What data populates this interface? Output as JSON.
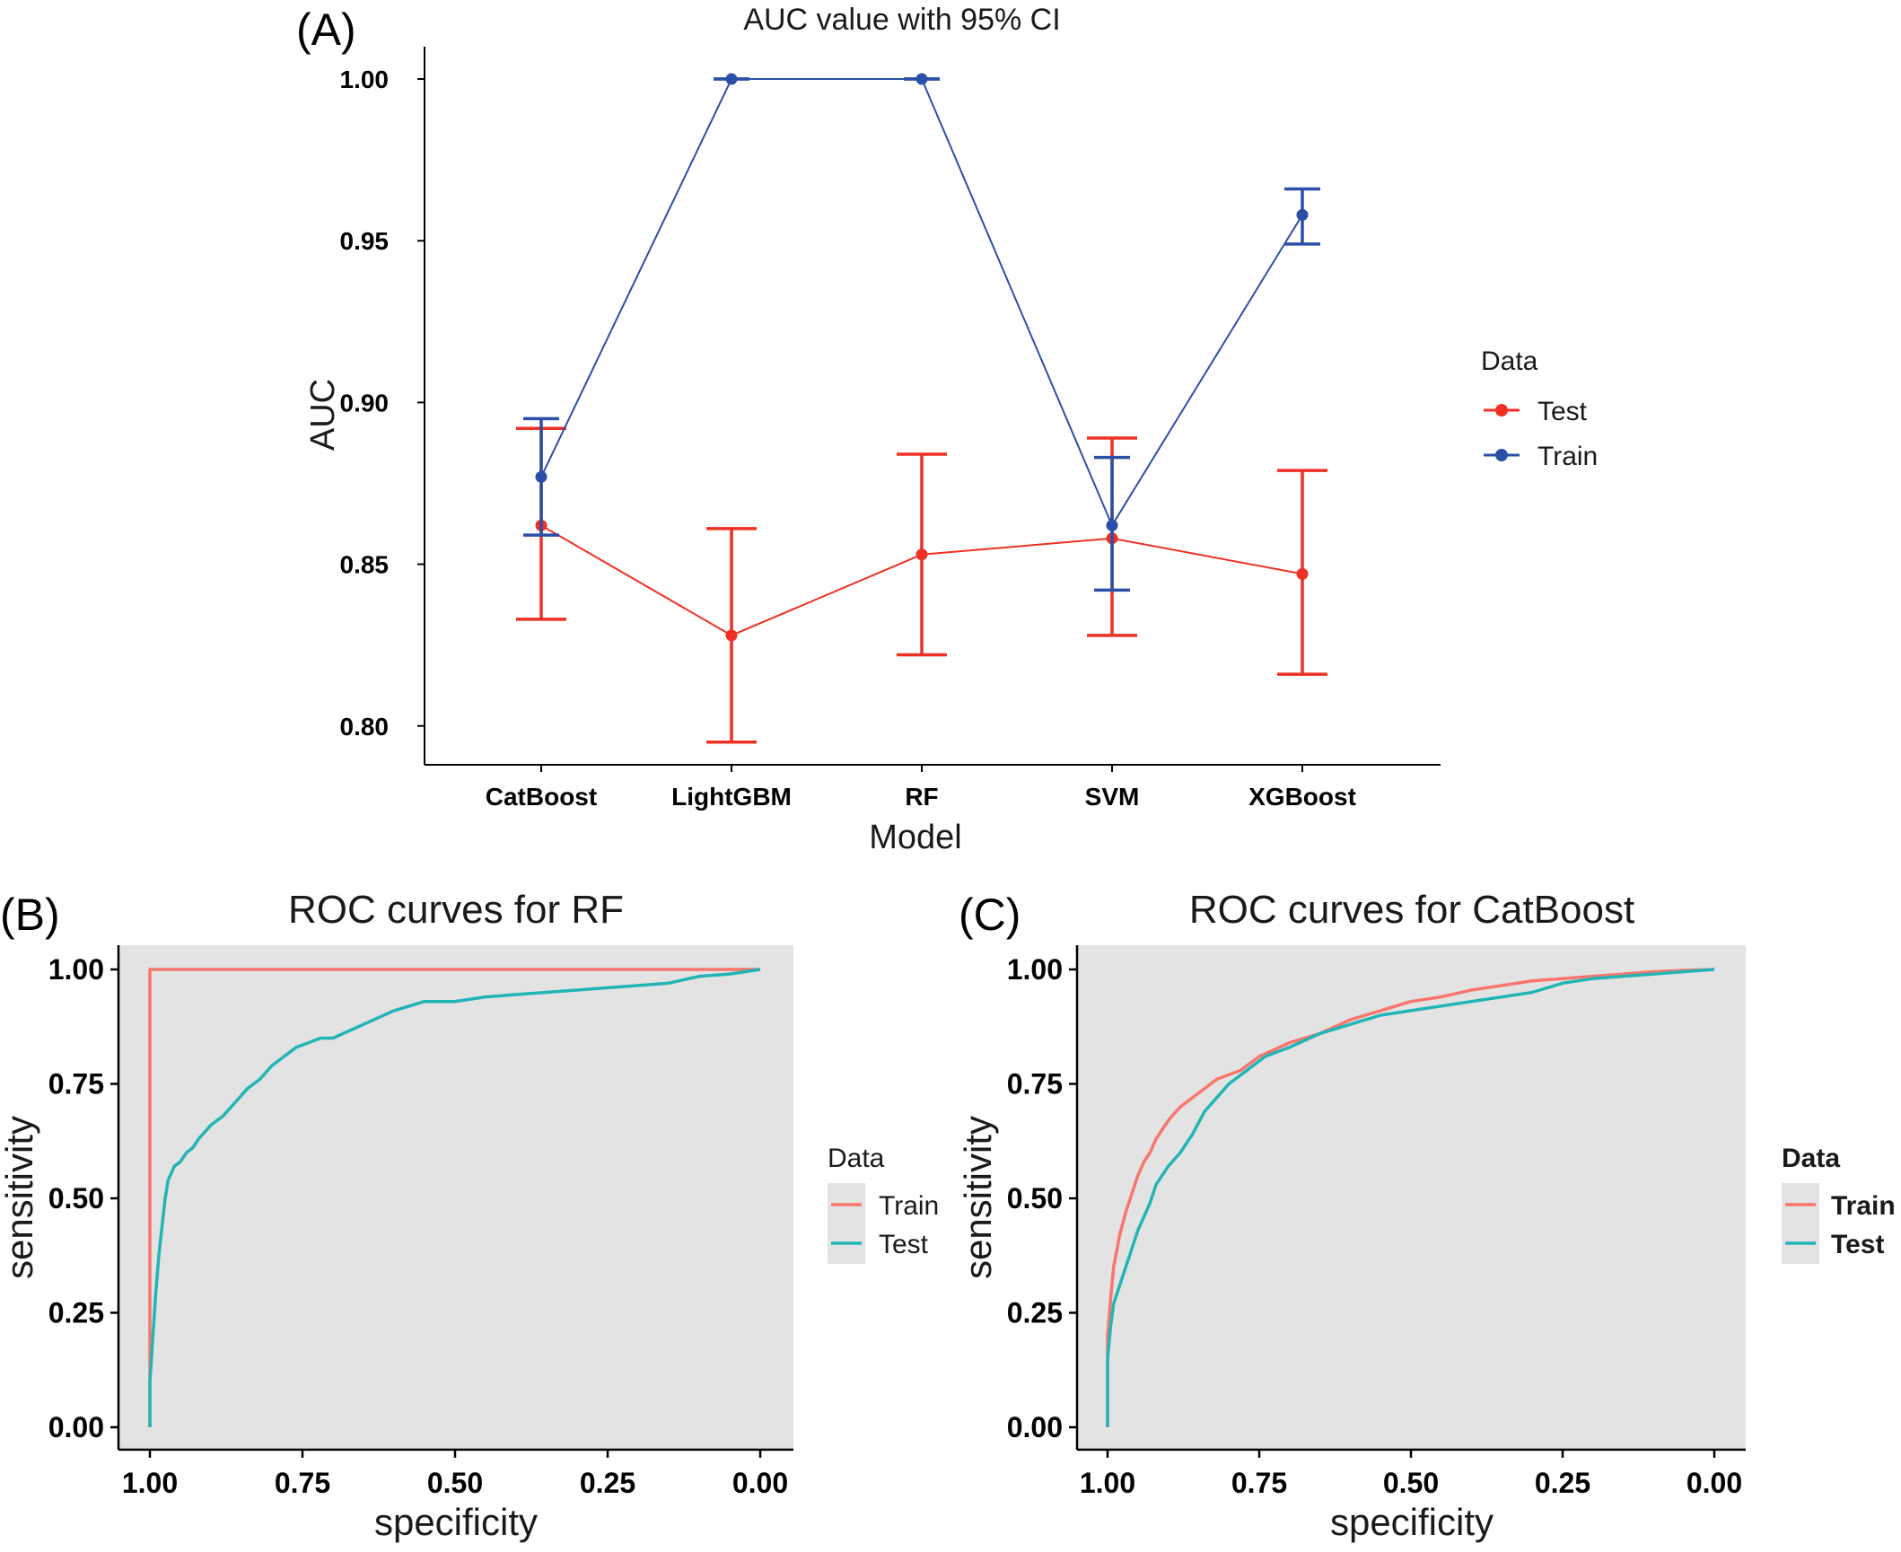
{
  "colors": {
    "a_test": "#ee3124",
    "a_train": "#2b4fa8",
    "roc_train": "#f8766d",
    "roc_test": "#22b5b5",
    "panel_bg": "#e3e3e3"
  },
  "chart_data": [
    {
      "panel": "(A)",
      "type": "line",
      "title": "AUC value with 95% CI",
      "xlabel": "Model",
      "ylabel": "AUC",
      "categories": [
        "CatBoost",
        "LightGBM",
        "RF",
        "SVM",
        "XGBoost"
      ],
      "ylim": [
        0.788,
        1.01
      ],
      "yticks": [
        "0.80",
        "0.85",
        "0.90",
        "0.95",
        "1.00"
      ],
      "legend": {
        "title": "Data",
        "position": "right"
      },
      "series": [
        {
          "name": "Test",
          "values": [
            0.862,
            0.828,
            0.853,
            0.858,
            0.847
          ],
          "lower": [
            0.833,
            0.795,
            0.822,
            0.828,
            0.816
          ],
          "upper": [
            0.892,
            0.861,
            0.884,
            0.889,
            0.879
          ]
        },
        {
          "name": "Train",
          "values": [
            0.877,
            1.0,
            1.0,
            0.862,
            0.958
          ],
          "lower": [
            0.859,
            1.0,
            1.0,
            0.842,
            0.949
          ],
          "upper": [
            0.895,
            1.0,
            1.0,
            0.883,
            0.966
          ]
        }
      ]
    },
    {
      "panel": "(B)",
      "type": "line",
      "title": "ROC curves for RF",
      "xlabel": "specificity",
      "ylabel": "sensitivity",
      "xlim": [
        1.0,
        0.0
      ],
      "ylim": [
        0.0,
        1.0
      ],
      "ticks": [
        "0.00",
        "0.25",
        "0.50",
        "0.75",
        "1.00"
      ],
      "legend": {
        "title": "Data",
        "position": "right"
      },
      "series": [
        {
          "name": "Train",
          "x": [
            1.0,
            1.0,
            0.0
          ],
          "y": [
            0.0,
            1.0,
            1.0
          ]
        },
        {
          "name": "Test",
          "x": [
            1.0,
            1.0,
            0.995,
            0.99,
            0.985,
            0.98,
            0.975,
            0.97,
            0.96,
            0.95,
            0.94,
            0.93,
            0.92,
            0.9,
            0.88,
            0.86,
            0.84,
            0.82,
            0.8,
            0.78,
            0.76,
            0.74,
            0.72,
            0.7,
            0.65,
            0.6,
            0.55,
            0.5,
            0.45,
            0.4,
            0.35,
            0.3,
            0.25,
            0.2,
            0.15,
            0.1,
            0.05,
            0.0
          ],
          "y": [
            0.0,
            0.1,
            0.2,
            0.3,
            0.38,
            0.44,
            0.5,
            0.54,
            0.57,
            0.58,
            0.6,
            0.61,
            0.63,
            0.66,
            0.68,
            0.71,
            0.74,
            0.76,
            0.79,
            0.81,
            0.83,
            0.84,
            0.85,
            0.85,
            0.88,
            0.91,
            0.93,
            0.93,
            0.94,
            0.945,
            0.95,
            0.955,
            0.96,
            0.965,
            0.97,
            0.985,
            0.99,
            1.0
          ]
        }
      ]
    },
    {
      "panel": "(C)",
      "type": "line",
      "title": "ROC curves for CatBoost",
      "xlabel": "specificity",
      "ylabel": "sensitivity",
      "xlim": [
        1.0,
        0.0
      ],
      "ylim": [
        0.0,
        1.0
      ],
      "ticks": [
        "0.00",
        "0.25",
        "0.50",
        "0.75",
        "1.00"
      ],
      "legend": {
        "title": "Data",
        "position": "right"
      },
      "series": [
        {
          "name": "Train",
          "x": [
            1.0,
            1.0,
            0.995,
            0.99,
            0.98,
            0.97,
            0.96,
            0.95,
            0.94,
            0.93,
            0.92,
            0.9,
            0.88,
            0.86,
            0.84,
            0.82,
            0.8,
            0.78,
            0.75,
            0.7,
            0.65,
            0.6,
            0.55,
            0.5,
            0.45,
            0.4,
            0.35,
            0.3,
            0.25,
            0.2,
            0.15,
            0.1,
            0.05,
            0.0
          ],
          "y": [
            0.0,
            0.2,
            0.28,
            0.35,
            0.42,
            0.47,
            0.51,
            0.55,
            0.58,
            0.6,
            0.63,
            0.67,
            0.7,
            0.72,
            0.74,
            0.76,
            0.77,
            0.78,
            0.81,
            0.84,
            0.86,
            0.89,
            0.91,
            0.93,
            0.94,
            0.955,
            0.965,
            0.975,
            0.98,
            0.985,
            0.99,
            0.995,
            0.998,
            1.0
          ]
        },
        {
          "name": "Test",
          "x": [
            1.0,
            1.0,
            0.995,
            0.99,
            0.98,
            0.97,
            0.96,
            0.95,
            0.94,
            0.93,
            0.92,
            0.9,
            0.88,
            0.86,
            0.84,
            0.82,
            0.8,
            0.78,
            0.76,
            0.74,
            0.72,
            0.7,
            0.65,
            0.6,
            0.55,
            0.5,
            0.45,
            0.4,
            0.35,
            0.3,
            0.25,
            0.2,
            0.15,
            0.1,
            0.05,
            0.0
          ],
          "y": [
            0.0,
            0.15,
            0.22,
            0.27,
            0.31,
            0.35,
            0.39,
            0.43,
            0.46,
            0.49,
            0.53,
            0.57,
            0.6,
            0.64,
            0.69,
            0.72,
            0.75,
            0.77,
            0.79,
            0.81,
            0.82,
            0.83,
            0.86,
            0.88,
            0.9,
            0.91,
            0.92,
            0.93,
            0.94,
            0.95,
            0.97,
            0.98,
            0.985,
            0.99,
            0.995,
            1.0
          ]
        }
      ]
    }
  ]
}
